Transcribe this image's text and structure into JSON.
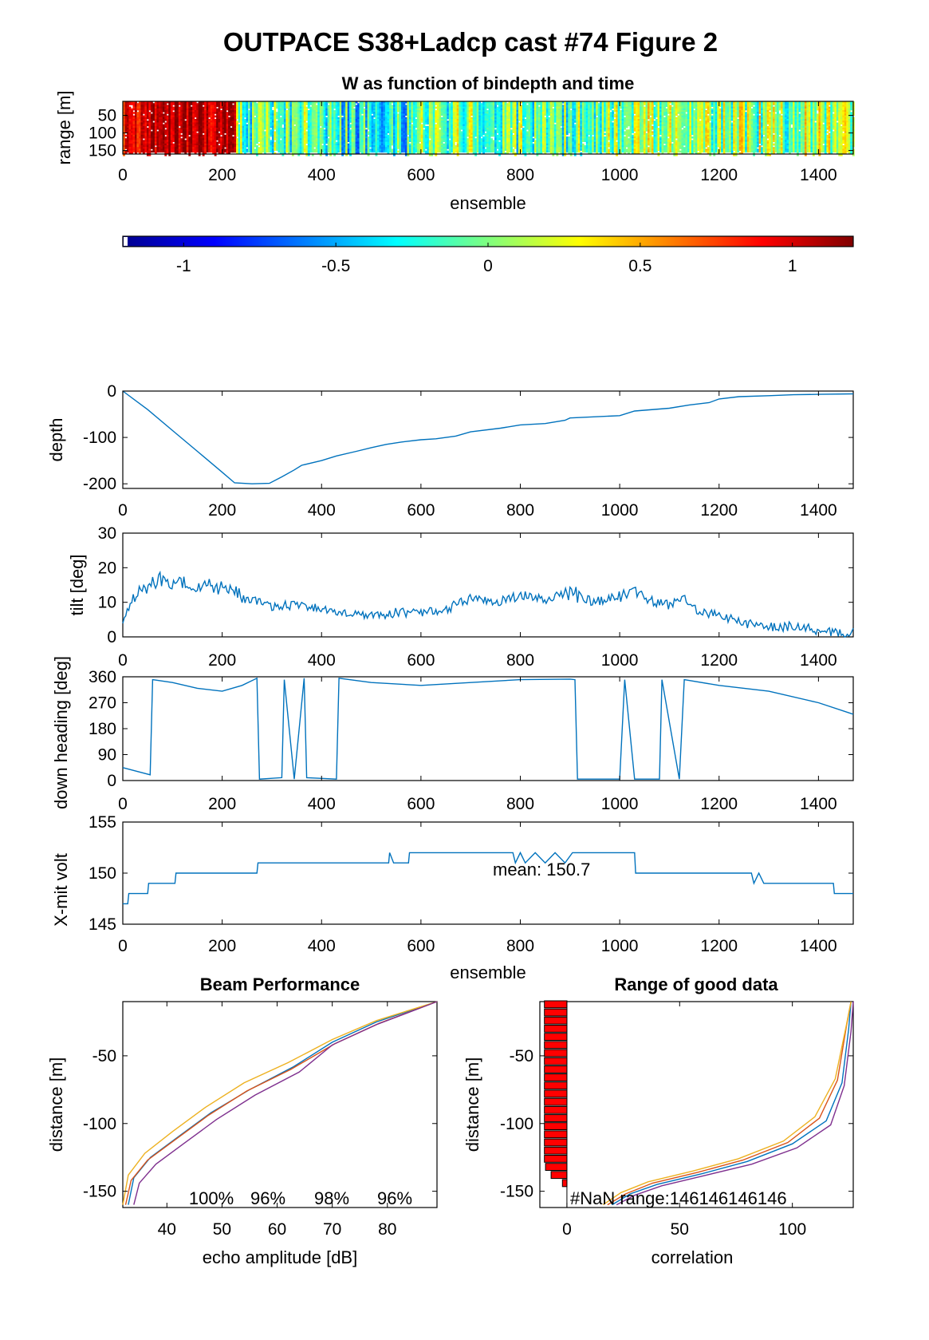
{
  "title": "OUTPACE S38+Ladcp cast #74 Figure 2",
  "panels": {
    "w_image": {
      "title": "W as function of bindepth and time",
      "ylabel": "range [m]",
      "xlabel": "ensemble",
      "xticks": [
        "0",
        "200",
        "400",
        "600",
        "800",
        "1000",
        "1200",
        "1400"
      ],
      "yticks": [
        "50",
        "100",
        "150"
      ]
    },
    "colorbar": {
      "ticks": [
        "-1",
        "-0.5",
        "0",
        "0.5",
        "1"
      ]
    },
    "depth": {
      "ylabel": "depth",
      "xticks": [
        "0",
        "200",
        "400",
        "600",
        "800",
        "1000",
        "1200",
        "1400"
      ],
      "yticks": [
        "0",
        "-100",
        "-200"
      ]
    },
    "tilt": {
      "ylabel": "tilt [deg]",
      "xticks": [
        "0",
        "200",
        "400",
        "600",
        "800",
        "1000",
        "1200",
        "1400"
      ],
      "yticks": [
        "30",
        "20",
        "10",
        "0"
      ]
    },
    "heading": {
      "ylabel": "down heading [deg]",
      "xticks": [
        "0",
        "200",
        "400",
        "600",
        "800",
        "1000",
        "1200",
        "1400"
      ],
      "yticks": [
        "360",
        "270",
        "180",
        "90",
        "0"
      ]
    },
    "volt": {
      "ylabel": "X-mit volt",
      "xlabel": "ensemble",
      "annotation": "mean: 150.7",
      "xticks": [
        "0",
        "200",
        "400",
        "600",
        "800",
        "1000",
        "1200",
        "1400"
      ],
      "yticks": [
        "155",
        "150",
        "145"
      ]
    },
    "beam": {
      "title": "Beam Performance",
      "xlabel": "echo amplitude [dB]",
      "ylabel": "distance [m]",
      "xticks": [
        "40",
        "50",
        "60",
        "70",
        "80"
      ],
      "yticks": [
        "-50",
        "-100",
        "-150"
      ],
      "pct_labels": [
        "100%",
        "96%",
        "98%",
        "96%"
      ]
    },
    "range": {
      "title": "Range of good data",
      "xlabel": "correlation",
      "ylabel": "distance [m]",
      "xticks": [
        "0",
        "50",
        "100"
      ],
      "yticks": [
        "-50",
        "-100",
        "-150"
      ],
      "annotation": "#NaN range:146146146146"
    }
  },
  "colors": {
    "series": "#0072BD",
    "beam_lines": [
      "#0072BD",
      "#D95319",
      "#EDB120",
      "#7E2F8E"
    ],
    "bars": "#FF0000"
  },
  "chart_data": [
    {
      "type": "heatmap",
      "title": "W as function of bindepth and time",
      "xlabel": "ensemble",
      "ylabel": "range [m]",
      "xlim": [
        0,
        1470
      ],
      "ylim": [
        160,
        10
      ],
      "colormap": "jet",
      "clim": [
        -1.2,
        1.2
      ],
      "column_means_by_segment": [
        {
          "x": [
            0,
            40
          ],
          "w": 0.9
        },
        {
          "x": [
            40,
            225
          ],
          "w": 1.05
        },
        {
          "x": [
            225,
            440
          ],
          "w": -0.1
        },
        {
          "x": [
            440,
            600
          ],
          "w": -0.25
        },
        {
          "x": [
            600,
            900
          ],
          "w": -0.05
        },
        {
          "x": [
            900,
            1000
          ],
          "w": 0.0
        },
        {
          "x": [
            1000,
            1470
          ],
          "w": 0.05
        }
      ]
    },
    {
      "type": "line",
      "ylabel": "depth",
      "xlim": [
        0,
        1470
      ],
      "ylim": [
        -210,
        0
      ],
      "x": [
        0,
        50,
        100,
        150,
        200,
        225,
        260,
        295,
        320,
        345,
        360,
        400,
        430,
        470,
        500,
        530,
        560,
        600,
        630,
        670,
        700,
        760,
        800,
        850,
        890,
        900,
        1000,
        1030,
        1100,
        1140,
        1180,
        1200,
        1240,
        1300,
        1350,
        1400,
        1470
      ],
      "values": [
        0,
        -40,
        -85,
        -130,
        -175,
        -198,
        -200,
        -199,
        -185,
        -170,
        -160,
        -150,
        -140,
        -130,
        -122,
        -115,
        -110,
        -105,
        -103,
        -97,
        -88,
        -80,
        -73,
        -70,
        -63,
        -58,
        -53,
        -43,
        -37,
        -30,
        -25,
        -17,
        -12,
        -10,
        -8,
        -7,
        -6
      ]
    },
    {
      "type": "line",
      "ylabel": "tilt [deg]",
      "xlim": [
        0,
        1470
      ],
      "ylim": [
        0,
        30
      ],
      "x": [
        0,
        20,
        50,
        80,
        100,
        150,
        200,
        225,
        240,
        300,
        350,
        400,
        450,
        500,
        550,
        600,
        650,
        700,
        750,
        800,
        850,
        900,
        950,
        1000,
        1030,
        1050,
        1100,
        1130,
        1150,
        1200,
        1250,
        1300,
        1350,
        1400,
        1450,
        1470
      ],
      "values": [
        4,
        12,
        15,
        17,
        16,
        15,
        14,
        14,
        11,
        9,
        9,
        8,
        7,
        6,
        7,
        7,
        8,
        11,
        10,
        12,
        11,
        13,
        10,
        12,
        14,
        11,
        9,
        11,
        8,
        6,
        4,
        3,
        3,
        2,
        1,
        2
      ]
    },
    {
      "type": "line",
      "ylabel": "down heading [deg]",
      "xlim": [
        0,
        1470
      ],
      "ylim": [
        0,
        360
      ],
      "x": [
        0,
        55,
        60,
        100,
        150,
        200,
        240,
        270,
        275,
        320,
        325,
        345,
        365,
        370,
        430,
        435,
        500,
        600,
        700,
        800,
        900,
        910,
        915,
        1000,
        1010,
        1030,
        1080,
        1085,
        1120,
        1130,
        1200,
        1300,
        1400,
        1470
      ],
      "values": [
        45,
        20,
        350,
        340,
        320,
        310,
        330,
        355,
        5,
        10,
        350,
        5,
        355,
        10,
        5,
        355,
        340,
        330,
        340,
        350,
        352,
        350,
        5,
        5,
        350,
        5,
        5,
        350,
        5,
        350,
        330,
        310,
        270,
        230
      ]
    },
    {
      "type": "line",
      "ylabel": "X-mit volt",
      "xlabel": "ensemble",
      "xlim": [
        0,
        1470
      ],
      "ylim": [
        145,
        155
      ],
      "x": [
        0,
        10,
        12,
        50,
        52,
        105,
        107,
        270,
        272,
        535,
        537,
        545,
        550,
        575,
        577,
        785,
        790,
        800,
        810,
        830,
        850,
        870,
        890,
        905,
        1030,
        1032,
        1265,
        1270,
        1280,
        1290,
        1430,
        1432,
        1470
      ],
      "values": [
        147,
        147,
        148,
        148,
        149,
        149,
        150,
        150,
        151,
        151,
        152,
        151,
        151,
        151,
        152,
        152,
        151,
        152,
        151,
        152,
        151,
        152,
        151,
        152,
        152,
        150,
        150,
        149,
        150,
        149,
        149,
        148,
        148
      ]
    },
    {
      "type": "line",
      "title": "Beam Performance",
      "xlabel": "echo amplitude [dB]",
      "ylabel": "distance [m]",
      "xlim": [
        32,
        89
      ],
      "ylim": [
        -162,
        -10
      ],
      "series": [
        {
          "x": [
            33,
            34,
            37,
            42,
            48,
            55,
            63,
            70,
            78,
            89
          ],
          "y": [
            -160,
            -140,
            -125,
            -110,
            -92,
            -75,
            -58,
            -40,
            -25,
            -10
          ]
        },
        {
          "x": [
            32.5,
            33.5,
            36.5,
            41.5,
            47.5,
            54.5,
            62.5,
            70.5,
            78.5,
            89
          ],
          "y": [
            -160,
            -142,
            -127,
            -112,
            -94,
            -76,
            -60,
            -41,
            -26,
            -10
          ]
        },
        {
          "x": [
            32,
            33,
            36,
            41,
            47,
            54,
            62,
            70,
            78,
            89
          ],
          "y": [
            -160,
            -138,
            -122,
            -106,
            -88,
            -70,
            -55,
            -38,
            -24,
            -10
          ]
        },
        {
          "x": [
            34,
            35,
            38,
            43,
            49,
            56,
            64,
            70,
            78,
            89
          ],
          "y": [
            -160,
            -144,
            -130,
            -115,
            -97,
            -79,
            -62,
            -42,
            -27,
            -10
          ]
        }
      ]
    },
    {
      "type": "line",
      "title": "Range of good data",
      "xlabel": "correlation",
      "ylabel": "distance [m]",
      "xlim": [
        -12,
        127
      ],
      "ylim": [
        -162,
        -10
      ],
      "series": [
        {
          "x": [
            20,
            28,
            40,
            60,
            80,
            100,
            115,
            122,
            125,
            126
          ],
          "y": [
            -160,
            -152,
            -145,
            -137,
            -128,
            -115,
            -98,
            -70,
            -30,
            -10
          ]
        },
        {
          "x": [
            18,
            26,
            38,
            58,
            78,
            98,
            112,
            120,
            124,
            126
          ],
          "y": [
            -160,
            -152,
            -144,
            -136,
            -127,
            -114,
            -96,
            -68,
            -28,
            -10
          ]
        },
        {
          "x": [
            16,
            24,
            36,
            56,
            76,
            96,
            110,
            119,
            124,
            126
          ],
          "y": [
            -160,
            -151,
            -143,
            -135,
            -126,
            -113,
            -95,
            -67,
            -27,
            -10
          ]
        },
        {
          "x": [
            22,
            30,
            42,
            62,
            82,
            102,
            117,
            123,
            126,
            127
          ],
          "y": [
            -160,
            -153,
            -146,
            -138,
            -130,
            -118,
            -101,
            -72,
            -32,
            -10
          ]
        }
      ],
      "bars": {
        "y": [
          -12,
          -18,
          -24,
          -30,
          -36,
          -42,
          -48,
          -54,
          -60,
          -66,
          -72,
          -78,
          -84,
          -90,
          -96,
          -102,
          -108,
          -114,
          -120,
          -126,
          -132,
          -138,
          -144
        ],
        "values": [
          -10,
          -10,
          -10,
          -10,
          -10,
          -10,
          -10,
          -10,
          -10,
          -10,
          -10,
          -10,
          -10,
          -10,
          -10,
          -10,
          -10,
          -10,
          -10,
          -10,
          -9.5,
          -7,
          -2
        ]
      }
    }
  ]
}
